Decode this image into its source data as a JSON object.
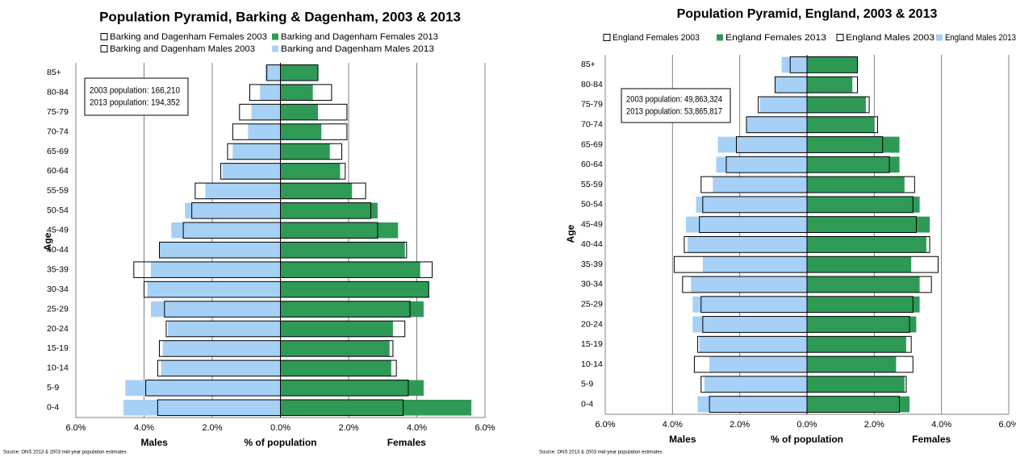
{
  "chart_data": [
    {
      "type": "pyramid",
      "title": "Population Pyramid, Barking & Dagenham, 2003 & 2013",
      "categories": [
        "0-4",
        "5-9",
        "10-14",
        "15-19",
        "20-24",
        "25-29",
        "30-34",
        "35-39",
        "40-44",
        "45-49",
        "50-54",
        "55-59",
        "60-64",
        "65-69",
        "70-74",
        "75-79",
        "80-84",
        "85+"
      ],
      "series": [
        {
          "name": "Barking and Dagenham Females 2003",
          "color": "#000000",
          "style": "outline",
          "values": [
            3.6,
            3.75,
            3.4,
            3.3,
            3.65,
            3.8,
            4.35,
            4.45,
            3.7,
            2.85,
            2.65,
            2.5,
            1.9,
            1.8,
            1.95,
            1.95,
            1.5,
            1.1
          ]
        },
        {
          "name": "Barking and Dagenham Females 2013",
          "color": "#2e9a56",
          "style": "fill",
          "values": [
            5.6,
            4.2,
            3.25,
            3.2,
            3.3,
            4.2,
            4.35,
            4.1,
            3.65,
            3.45,
            2.85,
            2.1,
            1.75,
            1.45,
            1.2,
            1.1,
            0.95,
            1.1
          ]
        },
        {
          "name": "Barking and Dagenham Males 2003",
          "color": "#000000",
          "style": "outline",
          "values": [
            -3.6,
            -3.95,
            -3.6,
            -3.55,
            -3.35,
            -3.4,
            -4.0,
            -4.3,
            -3.55,
            -2.85,
            -2.6,
            -2.5,
            -1.75,
            -1.55,
            -1.4,
            -1.2,
            -0.9,
            -0.4
          ]
        },
        {
          "name": "Barking and Dagenham Males 2013",
          "color": "#a6d0f5",
          "style": "fill",
          "values": [
            -4.6,
            -4.55,
            -3.5,
            -3.45,
            -3.3,
            -3.8,
            -3.9,
            -3.8,
            -3.55,
            -3.2,
            -2.8,
            -2.2,
            -1.7,
            -1.4,
            -0.95,
            -0.85,
            -0.6,
            -0.45
          ]
        }
      ],
      "xlim": [
        -6,
        6
      ],
      "xticks": [
        {
          "value": -6,
          "label": "6.0%"
        },
        {
          "value": -4,
          "label": "4.0%"
        },
        {
          "value": -2,
          "label": "2.0%"
        },
        {
          "value": 0,
          "label": "0.0%"
        },
        {
          "value": 2,
          "label": "2.0%"
        },
        {
          "value": 4,
          "label": "4.0%"
        },
        {
          "value": 6,
          "label": "6.0%"
        }
      ],
      "x_label": "% of population",
      "y_label": "Age",
      "left_label": "Males",
      "right_label": "Females",
      "annotations": [
        "2003 population: 166,210",
        "2013 population: 194,352"
      ],
      "source": "Source: ONS 2013 & 2003 mid-year population estimates",
      "grid": true
    },
    {
      "type": "pyramid",
      "title": "Population Pyramid, England, 2003 & 2013",
      "categories": [
        "0-4",
        "5-9",
        "10-14",
        "15-19",
        "20-24",
        "25-29",
        "30-34",
        "35-39",
        "40-44",
        "45-49",
        "50-54",
        "55-59",
        "60-64",
        "65-69",
        "70-74",
        "75-79",
        "80-84",
        "85+"
      ],
      "series": [
        {
          "name": "England Females 2003",
          "color": "#000000",
          "style": "outline",
          "values": [
            2.75,
            2.95,
            3.15,
            3.1,
            3.05,
            3.15,
            3.7,
            3.9,
            3.65,
            3.25,
            3.15,
            3.2,
            2.45,
            2.25,
            2.1,
            1.85,
            1.5,
            1.5
          ]
        },
        {
          "name": "England Females 2013",
          "color": "#2e9a56",
          "style": "fill",
          "values": [
            3.05,
            2.9,
            2.65,
            2.95,
            3.25,
            3.35,
            3.35,
            3.1,
            3.55,
            3.65,
            3.35,
            2.9,
            2.75,
            2.75,
            2.0,
            1.75,
            1.35,
            1.5
          ]
        },
        {
          "name": "England Males 2003",
          "color": "#000000",
          "style": "outline",
          "values": [
            -2.9,
            -3.15,
            -3.35,
            -3.25,
            -3.1,
            -3.15,
            -3.7,
            -3.95,
            -3.65,
            -3.2,
            -3.1,
            -3.15,
            -2.4,
            -2.1,
            -1.8,
            -1.45,
            -0.95,
            -0.5
          ]
        },
        {
          "name": "England Males 2013",
          "color": "#a6d0f5",
          "style": "fill",
          "values": [
            -3.25,
            -3.05,
            -2.9,
            -3.2,
            -3.4,
            -3.4,
            -3.45,
            -3.1,
            -3.55,
            -3.6,
            -3.3,
            -2.8,
            -2.7,
            -2.65,
            -1.8,
            -1.4,
            -0.95,
            -0.75
          ]
        }
      ],
      "xlim": [
        -6,
        6
      ],
      "xticks": [
        {
          "value": -6,
          "label": "6.0%"
        },
        {
          "value": -4,
          "label": "4.0%"
        },
        {
          "value": -2,
          "label": "2.0%"
        },
        {
          "value": 0,
          "label": "0.0%"
        },
        {
          "value": 2,
          "label": "2.0%"
        },
        {
          "value": 4,
          "label": "4.0%"
        },
        {
          "value": 6,
          "label": "6.0%"
        }
      ],
      "x_label": "% of population",
      "y_label": "Age",
      "left_label": "Males",
      "right_label": "Females",
      "annotations": [
        "2003 population: 49,863,324",
        "2013 population: 53,865,817"
      ],
      "source": "Source: ONS 2013 & 2003 mid-year population estimates",
      "grid": true
    }
  ]
}
